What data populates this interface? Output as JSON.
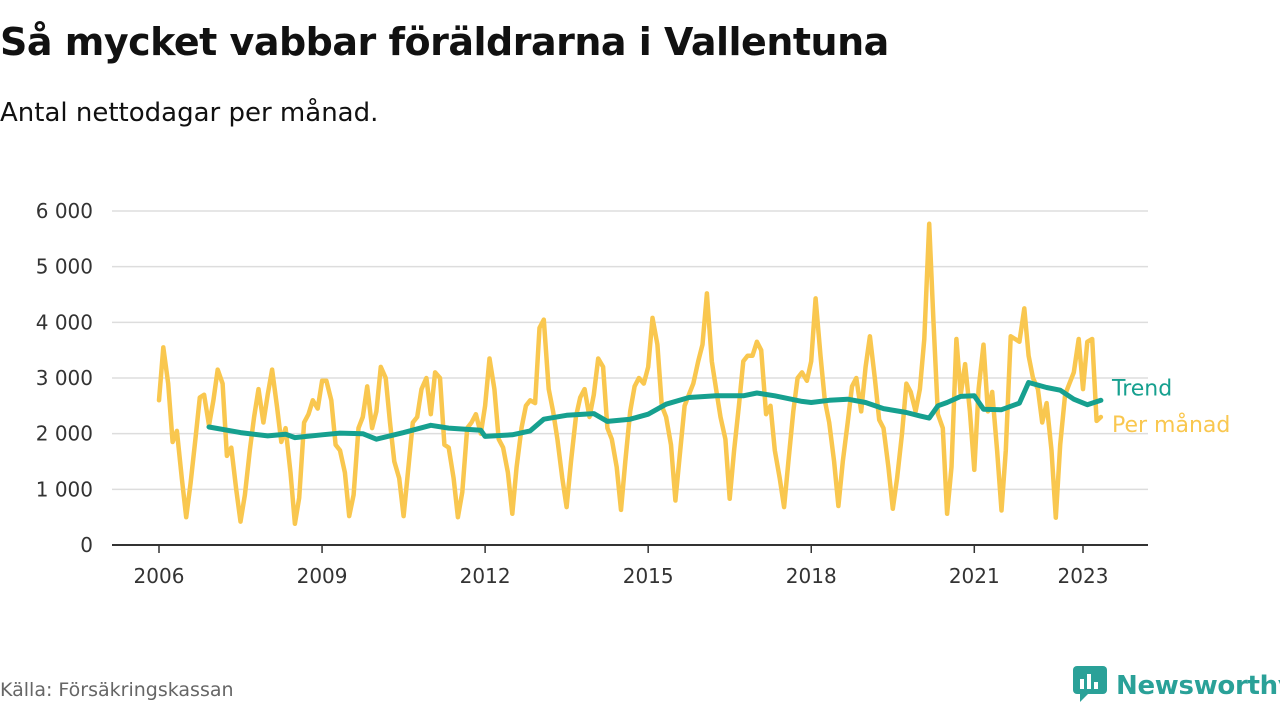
{
  "header": {
    "title": "Så mycket vabbar föräldrarna i Vallentuna",
    "subtitle": "Antal nettodagar per månad."
  },
  "footer": {
    "source": "Källa: Försäkringskassan",
    "brand": "Newsworthy",
    "brand_icon": "newsworthy-logo-icon"
  },
  "colors": {
    "monthly": "#f9c74f",
    "trend": "#16a08f",
    "grid": "#dddddd",
    "axis": "#333333"
  },
  "chart_data": {
    "type": "line",
    "x_unit": "year (decimal)",
    "xlim": [
      2005.5,
      2024.2
    ],
    "ylim": [
      0,
      6000
    ],
    "xticks": [
      2006,
      2009,
      2012,
      2015,
      2018,
      2021,
      2023
    ],
    "xtick_labels": [
      "2006",
      "2009",
      "2012",
      "2015",
      "2018",
      "2021",
      "2023"
    ],
    "yticks": [
      0,
      1000,
      2000,
      3000,
      4000,
      5000,
      6000
    ],
    "ytick_labels": [
      "0",
      "1 000",
      "2 000",
      "3 000",
      "4 000",
      "5 000",
      "6 000"
    ],
    "grid": true,
    "legend": "inline labels at line ends (right)",
    "series": [
      {
        "name": "Per månad",
        "key": "monthly",
        "points": [
          [
            2006.0,
            2600
          ],
          [
            2006.08,
            3550
          ],
          [
            2006.17,
            2900
          ],
          [
            2006.25,
            1850
          ],
          [
            2006.33,
            2050
          ],
          [
            2006.42,
            1200
          ],
          [
            2006.5,
            500
          ],
          [
            2006.58,
            1100
          ],
          [
            2006.67,
            1900
          ],
          [
            2006.75,
            2650
          ],
          [
            2006.83,
            2700
          ],
          [
            2006.92,
            2150
          ],
          [
            2007.0,
            2600
          ],
          [
            2007.08,
            3150
          ],
          [
            2007.17,
            2900
          ],
          [
            2007.25,
            1600
          ],
          [
            2007.33,
            1750
          ],
          [
            2007.42,
            1000
          ],
          [
            2007.5,
            420
          ],
          [
            2007.58,
            900
          ],
          [
            2007.67,
            1700
          ],
          [
            2007.75,
            2300
          ],
          [
            2007.83,
            2800
          ],
          [
            2007.92,
            2200
          ],
          [
            2008.0,
            2700
          ],
          [
            2008.08,
            3150
          ],
          [
            2008.17,
            2500
          ],
          [
            2008.25,
            1850
          ],
          [
            2008.33,
            2100
          ],
          [
            2008.42,
            1300
          ],
          [
            2008.5,
            380
          ],
          [
            2008.58,
            850
          ],
          [
            2008.67,
            2200
          ],
          [
            2008.75,
            2350
          ],
          [
            2008.83,
            2600
          ],
          [
            2008.92,
            2450
          ],
          [
            2009.0,
            2950
          ],
          [
            2009.08,
            2950
          ],
          [
            2009.17,
            2600
          ],
          [
            2009.25,
            1800
          ],
          [
            2009.33,
            1700
          ],
          [
            2009.42,
            1300
          ],
          [
            2009.5,
            520
          ],
          [
            2009.58,
            900
          ],
          [
            2009.67,
            2100
          ],
          [
            2009.75,
            2300
          ],
          [
            2009.83,
            2850
          ],
          [
            2009.92,
            2100
          ],
          [
            2010.0,
            2400
          ],
          [
            2010.08,
            3200
          ],
          [
            2010.17,
            3000
          ],
          [
            2010.25,
            2200
          ],
          [
            2010.33,
            1500
          ],
          [
            2010.42,
            1200
          ],
          [
            2010.5,
            520
          ],
          [
            2010.58,
            1300
          ],
          [
            2010.67,
            2200
          ],
          [
            2010.75,
            2300
          ],
          [
            2010.83,
            2800
          ],
          [
            2010.92,
            3000
          ],
          [
            2011.0,
            2350
          ],
          [
            2011.08,
            3100
          ],
          [
            2011.17,
            3000
          ],
          [
            2011.25,
            1800
          ],
          [
            2011.33,
            1750
          ],
          [
            2011.42,
            1200
          ],
          [
            2011.5,
            500
          ],
          [
            2011.58,
            950
          ],
          [
            2011.67,
            2100
          ],
          [
            2011.75,
            2200
          ],
          [
            2011.83,
            2350
          ],
          [
            2011.92,
            2000
          ],
          [
            2012.0,
            2500
          ],
          [
            2012.08,
            3350
          ],
          [
            2012.17,
            2800
          ],
          [
            2012.25,
            1900
          ],
          [
            2012.33,
            1750
          ],
          [
            2012.42,
            1300
          ],
          [
            2012.5,
            560
          ],
          [
            2012.58,
            1400
          ],
          [
            2012.67,
            2100
          ],
          [
            2012.75,
            2500
          ],
          [
            2012.83,
            2600
          ],
          [
            2012.92,
            2550
          ],
          [
            2013.0,
            3900
          ],
          [
            2013.08,
            4050
          ],
          [
            2013.17,
            2800
          ],
          [
            2013.25,
            2400
          ],
          [
            2013.33,
            1900
          ],
          [
            2013.42,
            1200
          ],
          [
            2013.5,
            680
          ],
          [
            2013.58,
            1500
          ],
          [
            2013.67,
            2300
          ],
          [
            2013.75,
            2650
          ],
          [
            2013.83,
            2800
          ],
          [
            2013.92,
            2300
          ],
          [
            2014.0,
            2700
          ],
          [
            2014.08,
            3350
          ],
          [
            2014.17,
            3200
          ],
          [
            2014.25,
            2100
          ],
          [
            2014.33,
            1900
          ],
          [
            2014.42,
            1400
          ],
          [
            2014.5,
            630
          ],
          [
            2014.58,
            1500
          ],
          [
            2014.67,
            2400
          ],
          [
            2014.75,
            2850
          ],
          [
            2014.83,
            3000
          ],
          [
            2014.92,
            2900
          ],
          [
            2015.0,
            3200
          ],
          [
            2015.08,
            4080
          ],
          [
            2015.17,
            3600
          ],
          [
            2015.25,
            2500
          ],
          [
            2015.33,
            2300
          ],
          [
            2015.42,
            1800
          ],
          [
            2015.5,
            800
          ],
          [
            2015.58,
            1600
          ],
          [
            2015.67,
            2500
          ],
          [
            2015.75,
            2700
          ],
          [
            2015.83,
            2900
          ],
          [
            2015.92,
            3300
          ],
          [
            2016.0,
            3600
          ],
          [
            2016.08,
            4520
          ],
          [
            2016.17,
            3300
          ],
          [
            2016.25,
            2800
          ],
          [
            2016.33,
            2300
          ],
          [
            2016.42,
            1900
          ],
          [
            2016.5,
            830
          ],
          [
            2016.58,
            1700
          ],
          [
            2016.67,
            2500
          ],
          [
            2016.75,
            3300
          ],
          [
            2016.83,
            3400
          ],
          [
            2016.92,
            3400
          ],
          [
            2017.0,
            3650
          ],
          [
            2017.08,
            3500
          ],
          [
            2017.17,
            2350
          ],
          [
            2017.25,
            2500
          ],
          [
            2017.33,
            1700
          ],
          [
            2017.42,
            1200
          ],
          [
            2017.5,
            680
          ],
          [
            2017.58,
            1500
          ],
          [
            2017.67,
            2400
          ],
          [
            2017.75,
            3000
          ],
          [
            2017.83,
            3100
          ],
          [
            2017.92,
            2950
          ],
          [
            2018.0,
            3300
          ],
          [
            2018.08,
            4430
          ],
          [
            2018.17,
            3400
          ],
          [
            2018.25,
            2600
          ],
          [
            2018.33,
            2200
          ],
          [
            2018.42,
            1500
          ],
          [
            2018.5,
            700
          ],
          [
            2018.58,
            1500
          ],
          [
            2018.67,
            2200
          ],
          [
            2018.75,
            2850
          ],
          [
            2018.83,
            3000
          ],
          [
            2018.92,
            2400
          ],
          [
            2019.0,
            3200
          ],
          [
            2019.08,
            3750
          ],
          [
            2019.17,
            3000
          ],
          [
            2019.25,
            2250
          ],
          [
            2019.33,
            2100
          ],
          [
            2019.42,
            1400
          ],
          [
            2019.5,
            650
          ],
          [
            2019.58,
            1200
          ],
          [
            2019.67,
            2000
          ],
          [
            2019.75,
            2900
          ],
          [
            2019.83,
            2750
          ],
          [
            2019.92,
            2400
          ],
          [
            2020.0,
            2800
          ],
          [
            2020.08,
            3700
          ],
          [
            2020.17,
            5770
          ],
          [
            2020.25,
            4000
          ],
          [
            2020.33,
            2350
          ],
          [
            2020.42,
            2100
          ],
          [
            2020.5,
            560
          ],
          [
            2020.58,
            1400
          ],
          [
            2020.67,
            3700
          ],
          [
            2020.75,
            2700
          ],
          [
            2020.83,
            3250
          ],
          [
            2020.92,
            2400
          ],
          [
            2021.0,
            1350
          ],
          [
            2021.08,
            2800
          ],
          [
            2021.17,
            3600
          ],
          [
            2021.25,
            2400
          ],
          [
            2021.33,
            2750
          ],
          [
            2021.42,
            1700
          ],
          [
            2021.5,
            620
          ],
          [
            2021.58,
            1700
          ],
          [
            2021.67,
            3750
          ],
          [
            2021.75,
            3700
          ],
          [
            2021.83,
            3650
          ],
          [
            2021.92,
            4250
          ],
          [
            2022.0,
            3400
          ],
          [
            2022.08,
            3000
          ],
          [
            2022.17,
            2800
          ],
          [
            2022.25,
            2200
          ],
          [
            2022.33,
            2550
          ],
          [
            2022.42,
            1700
          ],
          [
            2022.5,
            490
          ],
          [
            2022.58,
            1800
          ],
          [
            2022.67,
            2700
          ],
          [
            2022.75,
            2900
          ],
          [
            2022.83,
            3100
          ],
          [
            2022.92,
            3700
          ],
          [
            2023.0,
            2800
          ],
          [
            2023.08,
            3650
          ],
          [
            2023.17,
            3700
          ],
          [
            2023.25,
            2230
          ],
          [
            2023.33,
            2300
          ]
        ]
      },
      {
        "name": "Trend",
        "key": "trend",
        "points": [
          [
            2006.92,
            2120
          ],
          [
            2007.5,
            2020
          ],
          [
            2008.0,
            1960
          ],
          [
            2008.33,
            1990
          ],
          [
            2008.5,
            1930
          ],
          [
            2009.0,
            1980
          ],
          [
            2009.33,
            2010
          ],
          [
            2009.75,
            2000
          ],
          [
            2010.0,
            1900
          ],
          [
            2010.5,
            2020
          ],
          [
            2011.0,
            2150
          ],
          [
            2011.33,
            2100
          ],
          [
            2011.92,
            2060
          ],
          [
            2012.0,
            1950
          ],
          [
            2012.5,
            1980
          ],
          [
            2012.83,
            2050
          ],
          [
            2013.08,
            2260
          ],
          [
            2013.5,
            2330
          ],
          [
            2014.0,
            2360
          ],
          [
            2014.25,
            2220
          ],
          [
            2014.67,
            2260
          ],
          [
            2015.0,
            2350
          ],
          [
            2015.33,
            2530
          ],
          [
            2015.75,
            2650
          ],
          [
            2016.25,
            2680
          ],
          [
            2016.75,
            2680
          ],
          [
            2017.0,
            2730
          ],
          [
            2017.33,
            2680
          ],
          [
            2017.83,
            2580
          ],
          [
            2018.0,
            2560
          ],
          [
            2018.33,
            2600
          ],
          [
            2018.67,
            2620
          ],
          [
            2019.0,
            2560
          ],
          [
            2019.33,
            2450
          ],
          [
            2019.75,
            2380
          ],
          [
            2020.0,
            2320
          ],
          [
            2020.17,
            2280
          ],
          [
            2020.33,
            2500
          ],
          [
            2020.5,
            2560
          ],
          [
            2020.75,
            2670
          ],
          [
            2021.0,
            2680
          ],
          [
            2021.17,
            2440
          ],
          [
            2021.5,
            2430
          ],
          [
            2021.83,
            2550
          ],
          [
            2022.0,
            2920
          ],
          [
            2022.33,
            2830
          ],
          [
            2022.58,
            2780
          ],
          [
            2022.83,
            2620
          ],
          [
            2023.08,
            2520
          ],
          [
            2023.33,
            2600
          ]
        ]
      }
    ]
  }
}
